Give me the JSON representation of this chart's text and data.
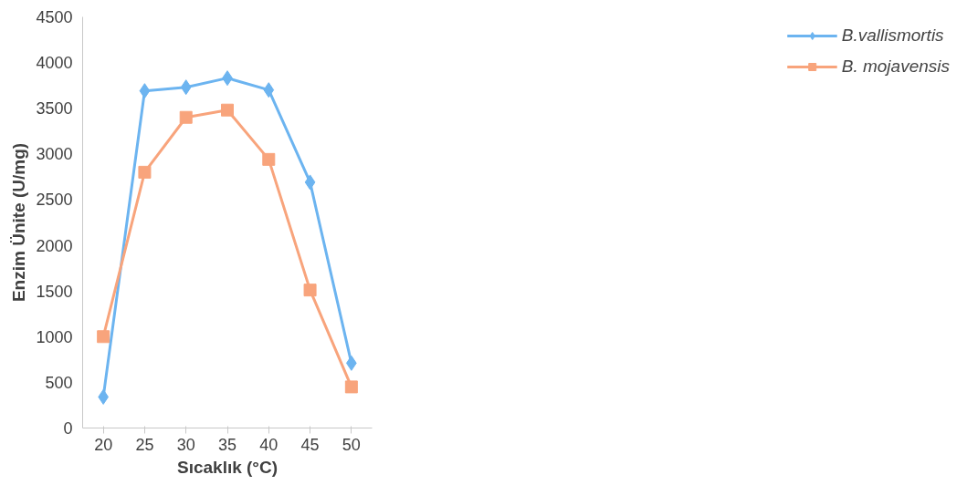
{
  "chart_data": {
    "type": "line",
    "xlabel": "Sıcaklık (°C)",
    "ylabel": "Enzim Ünite (U/mg)",
    "categories": [
      "20",
      "25",
      "30",
      "35",
      "40",
      "45",
      "50"
    ],
    "ylim": [
      0,
      4500
    ],
    "yticks": [
      0,
      500,
      1000,
      1500,
      2000,
      2500,
      3000,
      3500,
      4000,
      4500
    ],
    "grid": false,
    "legend": "right",
    "line_style": "solid",
    "series": [
      {
        "name": "B.vallismortis",
        "color": "#6cb4f0",
        "marker": "diamond",
        "values": [
          340,
          3690,
          3730,
          3830,
          3700,
          2690,
          710
        ]
      },
      {
        "name": "B. mojavensis",
        "color": "#f8a47c",
        "marker": "square",
        "values": [
          1000,
          2800,
          3400,
          3480,
          2940,
          1510,
          450
        ]
      }
    ]
  }
}
